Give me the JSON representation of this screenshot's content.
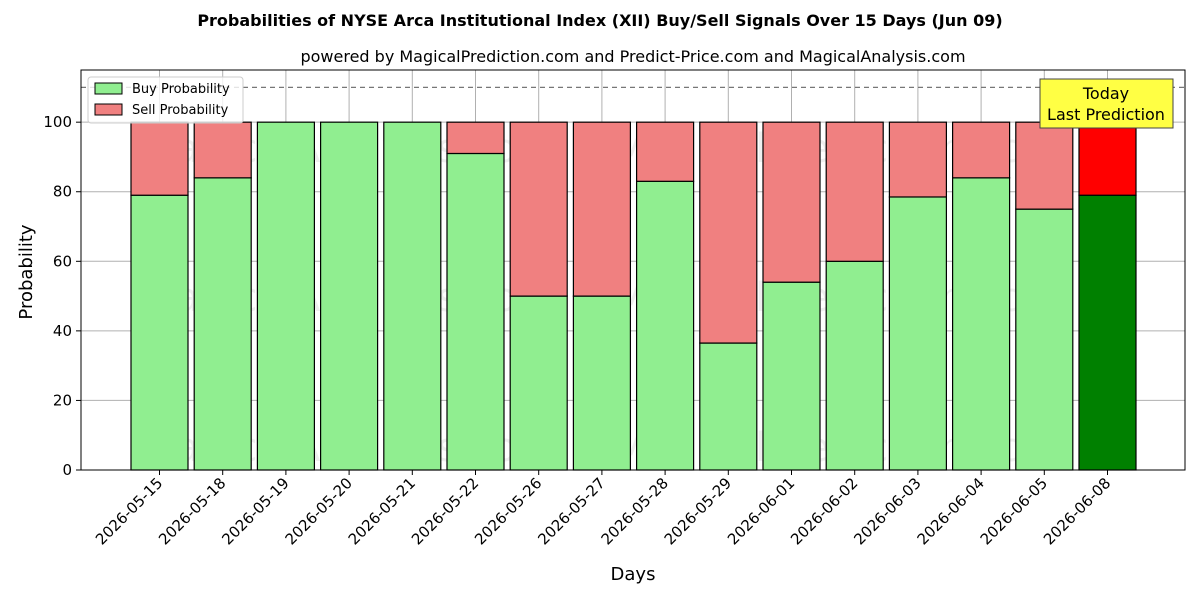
{
  "chart_data": {
    "type": "bar",
    "stacked": true,
    "title": "Probabilities of NYSE Arca Institutional Index (XII) Buy/Sell Signals Over 15 Days (Jun 09)",
    "subtitle": "powered by MagicalPrediction.com and Predict-Price.com and MagicalAnalysis.com",
    "xlabel": "Days",
    "ylabel": "Probability",
    "ylim": [
      0,
      115
    ],
    "yticks": [
      0,
      20,
      40,
      60,
      80,
      100
    ],
    "grid": true,
    "legend_position": "top-left",
    "reference_line": 110,
    "categories": [
      "2026-05-15",
      "2026-05-18",
      "2026-05-19",
      "2026-05-20",
      "2026-05-21",
      "2026-05-22",
      "2026-05-26",
      "2026-05-27",
      "2026-05-28",
      "2026-05-29",
      "2026-06-01",
      "2026-06-02",
      "2026-06-03",
      "2026-06-04",
      "2026-06-05",
      "2026-06-08"
    ],
    "series": [
      {
        "name": "Buy Probability",
        "color": "#90ee90",
        "highlight_color": "#008000",
        "values": [
          79,
          84,
          100,
          100,
          100,
          91,
          50,
          50,
          83,
          36.5,
          54,
          60,
          78.5,
          84,
          75,
          79
        ]
      },
      {
        "name": "Sell Probability",
        "color": "#f08080",
        "highlight_color": "#ff0000",
        "values": [
          21,
          16,
          0,
          0,
          0,
          9,
          50,
          50,
          17,
          63.5,
          46,
          40,
          21.5,
          16,
          25,
          21
        ]
      }
    ],
    "highlight_index": 15,
    "annotation": {
      "line1": "Today",
      "line2": "Last Prediction",
      "bg_color": "#ffff44"
    },
    "watermarks": [
      "MagicalAnalysis.com",
      "MagicalPrediction.com"
    ]
  }
}
